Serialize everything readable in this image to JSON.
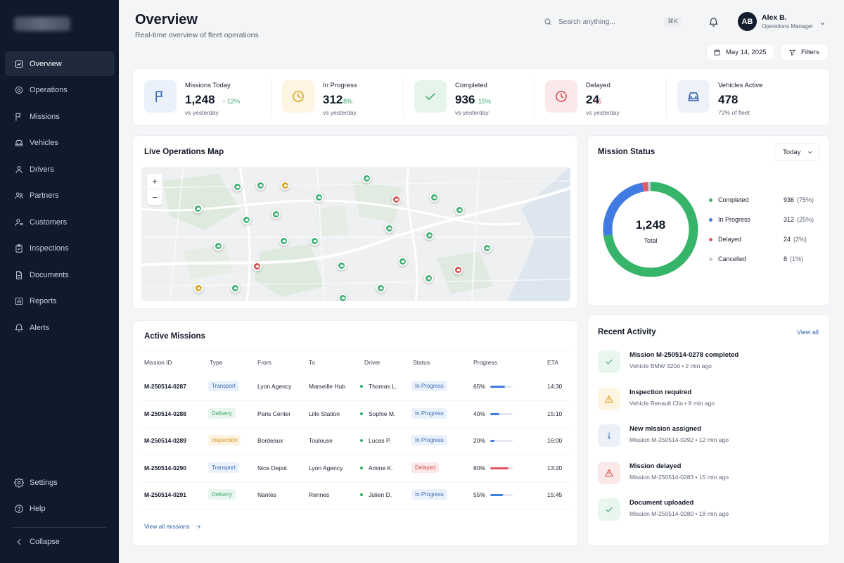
{
  "header": {
    "title": "Overview",
    "subtitle": "Real-time overview of fleet operations",
    "search_placeholder": "Search anything...",
    "search_shortcut": "⌘K",
    "user": {
      "initials": "AB",
      "name": "Alex B.",
      "role": "Operations Manager"
    },
    "date": "May 14, 2025",
    "filters_label": "Filters"
  },
  "sidebar": {
    "items": [
      {
        "label": "Overview",
        "icon": "overview-icon",
        "active": true
      },
      {
        "label": "Operations",
        "icon": "target-icon"
      },
      {
        "label": "Missions",
        "icon": "flag-icon"
      },
      {
        "label": "Vehicles",
        "icon": "car-icon"
      },
      {
        "label": "Drivers",
        "icon": "user-icon"
      },
      {
        "label": "Partners",
        "icon": "users-icon"
      },
      {
        "label": "Customers",
        "icon": "customers-icon"
      },
      {
        "label": "Inspections",
        "icon": "clipboard-icon"
      },
      {
        "label": "Documents",
        "icon": "document-icon"
      },
      {
        "label": "Reports",
        "icon": "chart-icon"
      },
      {
        "label": "Alerts",
        "icon": "bell-icon"
      }
    ],
    "settings_label": "Settings",
    "help_label": "Help",
    "collapse_label": "Collapse"
  },
  "kpis": [
    {
      "label": "Missions Today",
      "value": "1,248",
      "delta": "12%",
      "delta_dir": "up",
      "sub": "vs yesterday",
      "icon": "flag-icon",
      "color": "#2d5ea8",
      "bg": "#eaf1fb"
    },
    {
      "label": "In Progress",
      "value": "312",
      "delta": "8%",
      "delta_dir": "up",
      "sub": "vs yesterday",
      "icon": "clock-icon",
      "color": "#d6a019",
      "bg": "#fdf5e2"
    },
    {
      "label": "Completed",
      "value": "936",
      "delta": "15%",
      "delta_dir": "up",
      "sub": "vs yesterday",
      "icon": "check-icon",
      "color": "#36a96a",
      "bg": "#e6f5ec"
    },
    {
      "label": "Delayed",
      "value": "24",
      "delta": "5",
      "delta_dir": "up-bad",
      "sub": "vs yesterday",
      "icon": "clock-icon",
      "color": "#d14a4a",
      "bg": "#fbe9e9"
    },
    {
      "label": "Vehicles Active",
      "value": "478",
      "delta": "",
      "delta_dir": "none",
      "sub": "72% of fleet",
      "icon": "car-icon",
      "color": "#2d5ea8",
      "bg": "#eef1f8"
    }
  ],
  "map": {
    "title": "Live Operations Map",
    "zoom_in": "+",
    "zoom_out": "−",
    "colors": {
      "green": "#3aae6d",
      "red": "#d14a4a",
      "yellow": "#d6a019"
    }
  },
  "mission_status": {
    "title": "Mission Status",
    "period": "Today",
    "total": "1,248",
    "total_label": "Total",
    "segments": [
      {
        "label": "Completed",
        "value": "936",
        "pct": "(75%)",
        "fraction": 0.75,
        "color": "#36b56a"
      },
      {
        "label": "In Progress",
        "value": "312",
        "pct": "(25%)",
        "fraction": 0.25,
        "color": "#3f7be0"
      },
      {
        "label": "Delayed",
        "value": "24",
        "pct": "(2%)",
        "fraction": 0.02,
        "color": "#e05a6a"
      },
      {
        "label": "Cancelled",
        "value": "8",
        "pct": "(1%)",
        "fraction": 0.01,
        "color": "#c8ccd3"
      }
    ]
  },
  "missions": {
    "title": "Active Missions",
    "columns": [
      "Mission ID",
      "Type",
      "From",
      "To",
      "Driver",
      "Status",
      "Progress",
      "ETA"
    ],
    "rows": [
      {
        "id": "M-250514-0287",
        "type": "Transport",
        "from": "Lyon Agency",
        "to": "Marseille Hub",
        "driver": "Thomas L.",
        "status": "In Progress",
        "progress": "65%",
        "progress_value": 0.65,
        "eta": "14:30"
      },
      {
        "id": "M-250514-0288",
        "type": "Delivery",
        "from": "Paris Center",
        "to": "Lille Station",
        "driver": "Sophie M.",
        "status": "In Progress",
        "progress": "40%",
        "progress_value": 0.4,
        "eta": "15:10"
      },
      {
        "id": "M-250514-0289",
        "type": "Inspection",
        "from": "Bordeaux",
        "to": "Toulouse",
        "driver": "Lucas P.",
        "status": "In Progress",
        "progress": "20%",
        "progress_value": 0.2,
        "eta": "16:00"
      },
      {
        "id": "M-250514-0290",
        "type": "Transport",
        "from": "Nice Depot",
        "to": "Lyon Agency",
        "driver": "Amine K.",
        "status": "Delayed",
        "progress": "80%",
        "progress_value": 0.8,
        "eta": "13:20"
      },
      {
        "id": "M-250514-0291",
        "type": "Delivery",
        "from": "Nantes",
        "to": "Rennes",
        "driver": "Julien D.",
        "status": "In Progress",
        "progress": "55%",
        "progress_value": 0.55,
        "eta": "15:45"
      }
    ],
    "view_all": "View all missions"
  },
  "activity": {
    "title": "Recent Activity",
    "view_all": "View all",
    "items": [
      {
        "title": "Mission M-250514-0278 completed",
        "sub": "Vehicle BMW 320d • 2 min ago",
        "icon": "check-icon",
        "color": "#36a96a",
        "bg": "#e9f6ee"
      },
      {
        "title": "Inspection required",
        "sub": "Vehicle Renault Clio • 8 min ago",
        "icon": "warning-icon",
        "color": "#d6a019",
        "bg": "#fdf5e2"
      },
      {
        "title": "New mission assigned",
        "sub": "Mission M-250514-0292 • 12 min ago",
        "icon": "info-icon",
        "color": "#2d5ea8",
        "bg": "#ecf1f9"
      },
      {
        "title": "Mission delayed",
        "sub": "Mission M-250514-0283 • 15 min ago",
        "icon": "alert-icon",
        "color": "#d14a4a",
        "bg": "#fbe9e9"
      },
      {
        "title": "Document uploaded",
        "sub": "Mission M-250514-0280 • 18 min ago",
        "icon": "check-icon",
        "color": "#36a96a",
        "bg": "#e9f6ee"
      }
    ]
  }
}
